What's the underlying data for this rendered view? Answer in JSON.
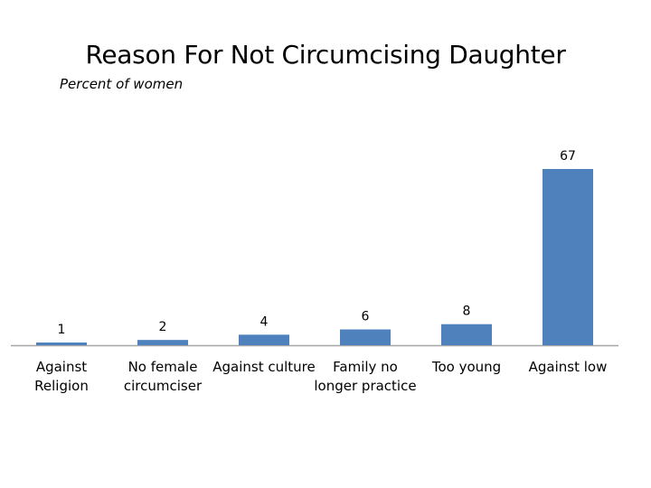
{
  "chart_data": {
    "type": "bar",
    "title": "Reason For Not Circumcising Daughter",
    "subtitle": "Percent of women",
    "categories": [
      "Against\nReligion",
      "No female\ncircumciser",
      "Against culture",
      "Family no\nlonger practice",
      "Too young",
      "Against low"
    ],
    "values": [
      1,
      2,
      4,
      6,
      8,
      67
    ],
    "data_labels": [
      "1",
      "2",
      "4",
      "6",
      "8",
      "67"
    ],
    "xlabel": "",
    "ylabel": "",
    "ylim": [
      0,
      70
    ],
    "grid": false,
    "legend": "none",
    "bar_color": "#4F81BD",
    "axis_color": "#A6A6A6"
  }
}
